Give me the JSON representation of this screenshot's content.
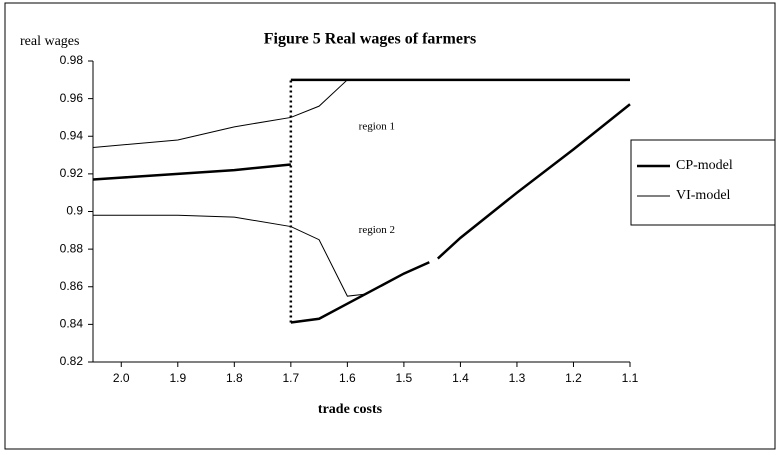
{
  "chart_data": {
    "type": "line",
    "title": "Figure 5  Real wages of farmers",
    "ylabel": "real wages",
    "xlabel": "trade costs",
    "xlim": [
      2.05,
      1.1
    ],
    "xticks": [
      {
        "value": 2,
        "label": "2.0"
      },
      1.9,
      1.8,
      1.7,
      1.6,
      1.5,
      1.4,
      1.3,
      1.2,
      1.1
    ],
    "ylim": [
      0.82,
      0.98
    ],
    "yticks": [
      0.82,
      0.84,
      0.86,
      0.88,
      0.9,
      0.92,
      0.94,
      0.96,
      0.98
    ],
    "legend": "right",
    "series": [
      {
        "name": "CP-model",
        "color": "#000000",
        "line_width": 2.5,
        "x": [
          2.05,
          2.0,
          1.9,
          1.8,
          1.7,
          null,
          1.7,
          1.65,
          1.6,
          1.5,
          1.455,
          null,
          1.44,
          1.4,
          1.3,
          1.2,
          1.1,
          null,
          1.7,
          1.1
        ],
        "values": [
          0.917,
          0.918,
          0.92,
          0.922,
          0.925,
          null,
          0.841,
          0.843,
          0.851,
          0.867,
          0.873,
          null,
          0.875,
          0.886,
          0.91,
          0.933,
          0.957,
          null,
          0.97,
          0.97
        ]
      },
      {
        "name": "VI-model",
        "color": "#000000",
        "line_width": 1,
        "x": [
          2.05,
          1.9,
          1.8,
          1.7,
          1.65,
          1.6,
          null,
          2.05,
          1.9,
          1.8,
          1.7,
          1.65,
          1.6,
          1.57
        ],
        "values": [
          0.934,
          0.938,
          0.945,
          0.95,
          0.956,
          0.97,
          null,
          0.898,
          0.898,
          0.897,
          0.892,
          0.885,
          0.855,
          0.856
        ]
      }
    ],
    "break_line": {
      "x": 1.7,
      "from": 0.841,
      "to": 0.97
    },
    "annotations": [
      {
        "text": "region 1",
        "x": 1.58,
        "y": 0.945
      },
      {
        "text": "region 2",
        "x": 1.58,
        "y": 0.89
      }
    ]
  }
}
